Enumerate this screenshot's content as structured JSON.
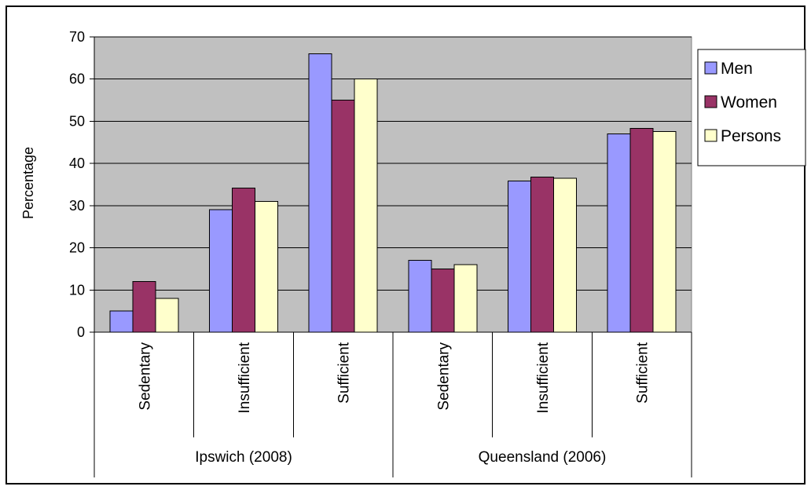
{
  "chart_data": {
    "type": "bar",
    "title": "",
    "xlabel": "",
    "ylabel": "Percentage",
    "ylim": [
      0,
      70
    ],
    "yticks": [
      0,
      10,
      20,
      30,
      40,
      50,
      60,
      70
    ],
    "grid": true,
    "legend_position": "right",
    "groups": [
      {
        "label": "Ipswich (2008)",
        "categories": [
          "Sedentary",
          "Insufficient",
          "Sufficient"
        ]
      },
      {
        "label": "Queensland (2006)",
        "categories": [
          "Sedentary",
          "Insufficient",
          "Sufficient"
        ]
      }
    ],
    "categories": [
      "Sedentary",
      "Insufficient",
      "Sufficient",
      "Sedentary",
      "Insufficient",
      "Sufficient"
    ],
    "series": [
      {
        "name": "Men",
        "color": "#9999ff",
        "values": [
          5,
          29,
          66,
          17,
          35.8,
          47
        ]
      },
      {
        "name": "Women",
        "color": "#993366",
        "values": [
          12,
          34.2,
          55,
          15,
          36.8,
          48.3
        ]
      },
      {
        "name": "Persons",
        "color": "#ffffcc",
        "values": [
          8,
          31,
          60,
          16,
          36.5,
          47.6
        ]
      }
    ],
    "plot_background": "#c0c0c0"
  }
}
